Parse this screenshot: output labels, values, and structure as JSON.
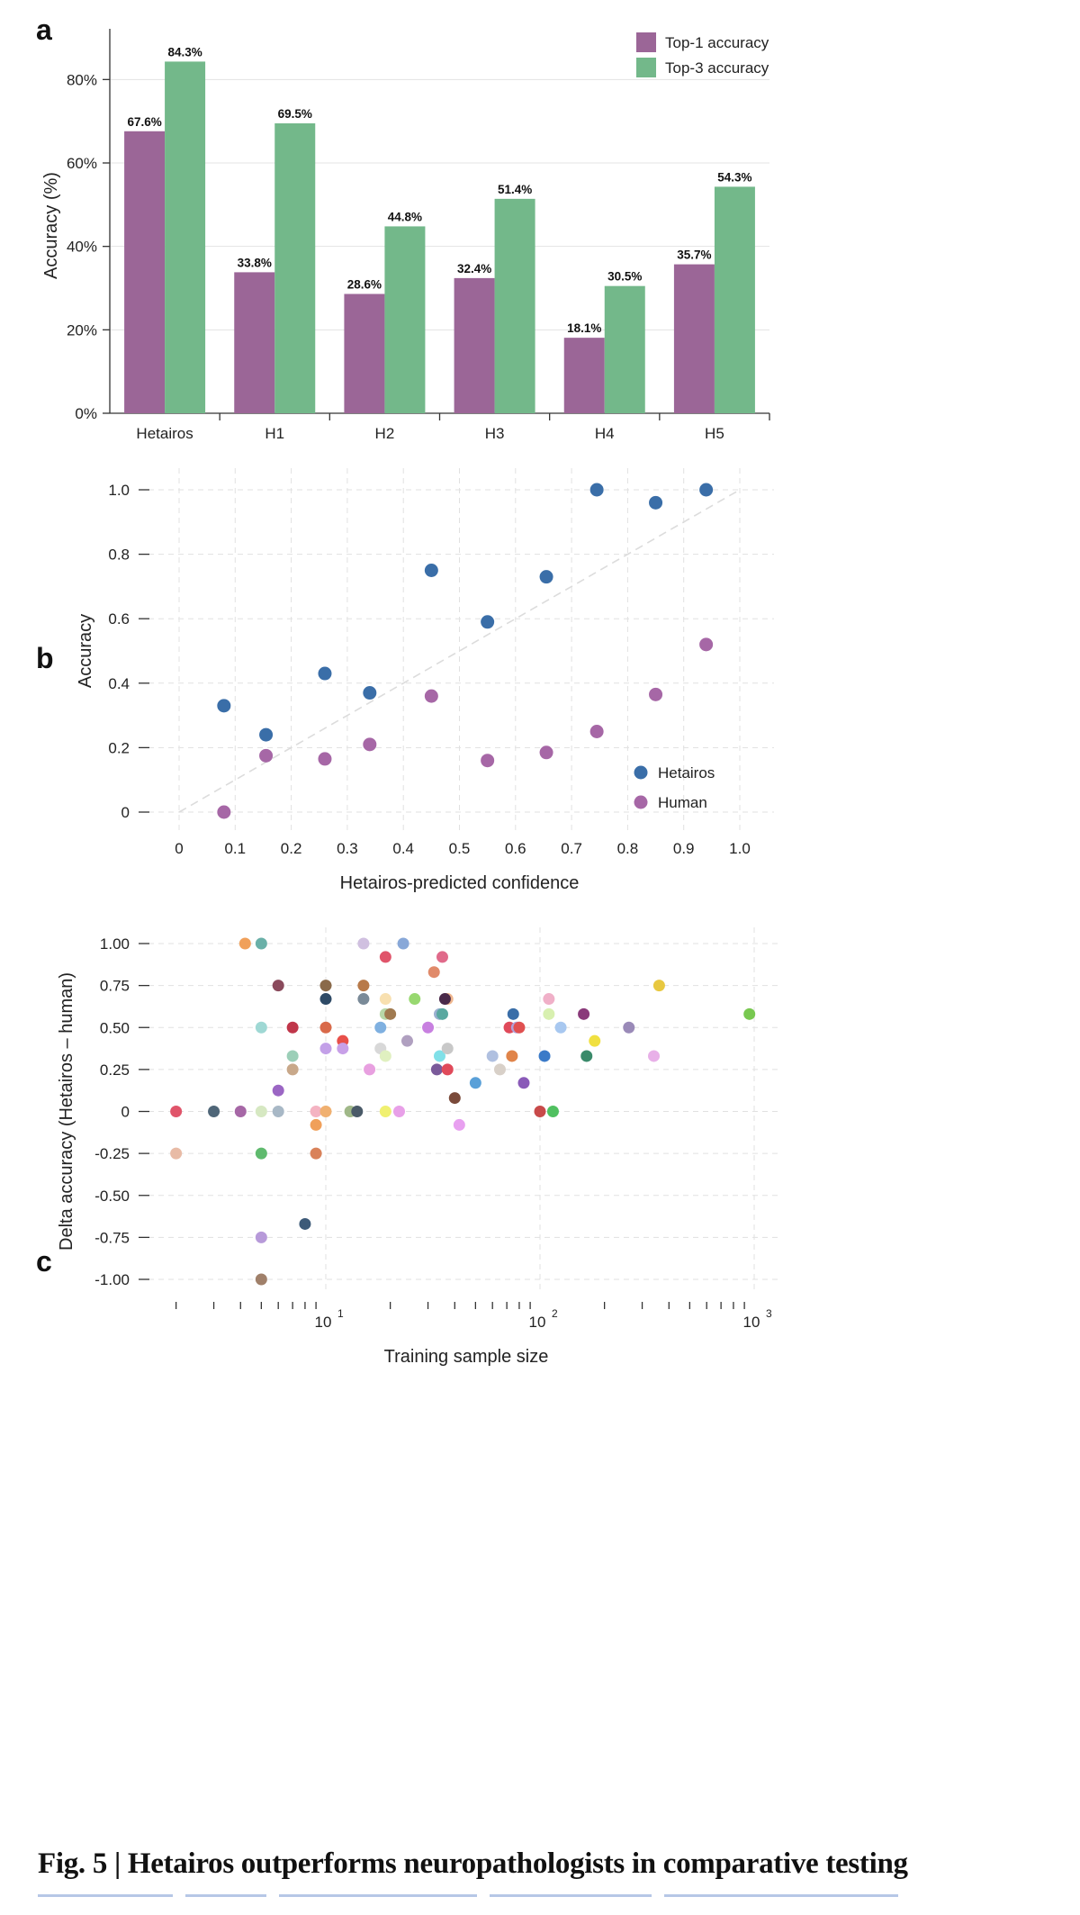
{
  "chart_data": [
    {
      "panel": "a",
      "type": "bar",
      "categories": [
        "Hetairos",
        "H1",
        "H2",
        "H3",
        "H4",
        "H5"
      ],
      "series": [
        {
          "name": "Top-1 accuracy",
          "values": [
            67.6,
            33.8,
            28.6,
            32.4,
            18.1,
            35.7
          ],
          "labels": [
            "67.6%",
            "33.8%",
            "28.6%",
            "32.4%",
            "18.1%",
            "35.7%"
          ],
          "color": "#9b6697"
        },
        {
          "name": "Top-3 accuracy",
          "values": [
            84.3,
            69.5,
            44.8,
            51.4,
            30.5,
            54.3
          ],
          "labels": [
            "84.3%",
            "69.5%",
            "44.8%",
            "51.4%",
            "30.5%",
            "54.3%"
          ],
          "color": "#73b88a"
        }
      ],
      "ylabel": "Accuracy (%)",
      "ylim": [
        0,
        90
      ],
      "yticks": [
        0,
        20,
        40,
        60,
        80
      ],
      "ytick_labels": [
        "0%",
        "20%",
        "40%",
        "60%",
        "80%"
      ],
      "grid": "horizontal",
      "legend": "top-right"
    },
    {
      "panel": "b",
      "type": "scatter",
      "xlabel": "Hetairos-predicted confidence",
      "ylabel": "Accuracy",
      "xlim": [
        0,
        1.0
      ],
      "ylim": [
        0,
        1.0
      ],
      "xticks": [
        0,
        0.1,
        0.2,
        0.3,
        0.4,
        0.5,
        0.6,
        0.7,
        0.8,
        0.9,
        1.0
      ],
      "xtick_labels": [
        "0",
        "0.1",
        "0.2",
        "0.3",
        "0.4",
        "0.5",
        "0.6",
        "0.7",
        "0.8",
        "0.9",
        "1.0"
      ],
      "yticks": [
        0,
        0.2,
        0.4,
        0.6,
        0.8,
        1.0
      ],
      "ytick_labels": [
        "0",
        "0.2",
        "0.4",
        "0.6",
        "0.8",
        "1.0"
      ],
      "grid": "both-dashed",
      "diagonal": "dashed",
      "legend": "bottom-right",
      "series": [
        {
          "name": "Hetairos",
          "color": "#3a6ea8",
          "points": [
            [
              0.08,
              0.33
            ],
            [
              0.155,
              0.24
            ],
            [
              0.26,
              0.43
            ],
            [
              0.34,
              0.37
            ],
            [
              0.45,
              0.75
            ],
            [
              0.55,
              0.59
            ],
            [
              0.655,
              0.73
            ],
            [
              0.745,
              1.0
            ],
            [
              0.85,
              0.96
            ],
            [
              0.94,
              1.0
            ]
          ]
        },
        {
          "name": "Human",
          "color": "#a667a6",
          "points": [
            [
              0.08,
              0.0
            ],
            [
              0.155,
              0.175
            ],
            [
              0.26,
              0.165
            ],
            [
              0.34,
              0.21
            ],
            [
              0.45,
              0.36
            ],
            [
              0.55,
              0.16
            ],
            [
              0.655,
              0.185
            ],
            [
              0.745,
              0.25
            ],
            [
              0.85,
              0.365
            ],
            [
              0.94,
              0.52
            ]
          ]
        }
      ]
    },
    {
      "panel": "c",
      "type": "scatter",
      "xscale": "log",
      "xlabel": "Training sample size",
      "ylabel": "Delta accuracy (Hetairos – human)",
      "xlim": [
        1.6,
        1100
      ],
      "ylim": [
        -1.05,
        1.05
      ],
      "xticks": [
        10,
        100,
        1000
      ],
      "xtick_labels": [
        "10",
        "10",
        "10"
      ],
      "xtick_exponents": [
        "1",
        "2",
        "3"
      ],
      "yticks": [
        -1.0,
        -0.75,
        -0.5,
        -0.25,
        0,
        0.25,
        0.5,
        0.75,
        1.0
      ],
      "ytick_labels": [
        "-1.00",
        "-0.75",
        "-0.50",
        "-0.25",
        "0",
        "0.25",
        "0.50",
        "0.75",
        "1.00"
      ],
      "grid": "both-dashed",
      "points": [
        [
          2,
          0,
          "#e0546a"
        ],
        [
          2,
          -0.25,
          "#e8bba6"
        ],
        [
          3,
          0,
          "#4f6678"
        ],
        [
          4,
          0,
          "#a667a6"
        ],
        [
          4.2,
          1.0,
          "#f0a05a"
        ],
        [
          5,
          1.0,
          "#6ab0a8"
        ],
        [
          5,
          0.5,
          "#9fd8d4"
        ],
        [
          5,
          0,
          "#d6e8c2"
        ],
        [
          5,
          -0.25,
          "#5fba6e"
        ],
        [
          5,
          -0.75,
          "#b79ad9"
        ],
        [
          5,
          -1.0,
          "#a0806a"
        ],
        [
          6,
          0.75,
          "#8a4a5c"
        ],
        [
          6,
          0.125,
          "#9b66c4"
        ],
        [
          6,
          0,
          "#a8b8c6"
        ],
        [
          7,
          0.5,
          "#c0364a"
        ],
        [
          7,
          0.33,
          "#9ccfb8"
        ],
        [
          7,
          0.25,
          "#c8a88a"
        ],
        [
          8,
          -0.67,
          "#3d5a78"
        ],
        [
          9,
          0,
          "#f4b3c2"
        ],
        [
          9,
          -0.08,
          "#f0a05a"
        ],
        [
          9,
          -0.25,
          "#d9825a"
        ],
        [
          10,
          0.75,
          "#8a6a4a"
        ],
        [
          10,
          0.67,
          "#2e4a66"
        ],
        [
          10,
          0.5,
          "#d96a4a"
        ],
        [
          10,
          0.375,
          "#c3a0e8"
        ],
        [
          10,
          0,
          "#f0b070"
        ],
        [
          12,
          0.42,
          "#e8504a"
        ],
        [
          12,
          0.375,
          "#c8a0e8"
        ],
        [
          13,
          0,
          "#a0b888"
        ],
        [
          14,
          0,
          "#4a5a68"
        ],
        [
          15,
          1.0,
          "#d0c0e0"
        ],
        [
          15,
          0.75,
          "#b87a4a"
        ],
        [
          15,
          0.67,
          "#7a8a98"
        ],
        [
          16,
          0.25,
          "#e8a0e0"
        ],
        [
          18,
          0.5,
          "#7fb0e0"
        ],
        [
          18,
          0.375,
          "#d8d8d8"
        ],
        [
          19,
          0.92,
          "#e0546a"
        ],
        [
          19,
          0.67,
          "#f8e0b0"
        ],
        [
          19,
          0.58,
          "#b8d8a8"
        ],
        [
          19,
          0.33,
          "#e0f0c0"
        ],
        [
          19,
          0,
          "#f0f070"
        ],
        [
          20,
          0.58,
          "#a07a50"
        ],
        [
          22,
          0,
          "#e8a0e8"
        ],
        [
          23,
          1.0,
          "#88a8d8"
        ],
        [
          24,
          0.42,
          "#b0a0c0"
        ],
        [
          26,
          0.67,
          "#98d870"
        ],
        [
          30,
          0.5,
          "#c880e0"
        ],
        [
          32,
          0.83,
          "#e08a6a"
        ],
        [
          33,
          0.25,
          "#7a5a9a"
        ],
        [
          34,
          0.58,
          "#9ab0d0"
        ],
        [
          34,
          0.33,
          "#80e0e8"
        ],
        [
          35,
          0.92,
          "#e06a8a"
        ],
        [
          35,
          0.58,
          "#5aa8a0"
        ],
        [
          37,
          0.67,
          "#f0b890"
        ],
        [
          37,
          0.375,
          "#c8c8c8"
        ],
        [
          37,
          0.25,
          "#e04a5a"
        ],
        [
          36,
          0.67,
          "#4a2a4a"
        ],
        [
          40,
          0.08,
          "#7a4a3a"
        ],
        [
          42,
          -0.08,
          "#e8a0f0"
        ],
        [
          50,
          0.17,
          "#5aa0d8"
        ],
        [
          60,
          0.33,
          "#b0c0e0"
        ],
        [
          65,
          0.25,
          "#d8d0c8"
        ],
        [
          72,
          0.5,
          "#e04a5a"
        ],
        [
          75,
          0.58,
          "#3a6ea8"
        ],
        [
          74,
          0.33,
          "#e0844a"
        ],
        [
          78,
          0.5,
          "#b0a0d8"
        ],
        [
          80,
          0.5,
          "#e05050"
        ],
        [
          84,
          0.17,
          "#8a5ab8"
        ],
        [
          100,
          0,
          "#c84a4a"
        ],
        [
          105,
          0.33,
          "#3a7ac8"
        ],
        [
          110,
          0.67,
          "#f0b0c8"
        ],
        [
          110,
          0.58,
          "#d8f0b0"
        ],
        [
          115,
          0,
          "#50c060"
        ],
        [
          125,
          0.5,
          "#a8c8f0"
        ],
        [
          160,
          0.58,
          "#8a3a7a"
        ],
        [
          165,
          0.33,
          "#3a8a6a"
        ],
        [
          180,
          0.42,
          "#f0e040"
        ],
        [
          260,
          0.5,
          "#9a8ab8"
        ],
        [
          340,
          0.33,
          "#e8b0e8"
        ],
        [
          360,
          0.75,
          "#e8c840"
        ],
        [
          950,
          0.58,
          "#78c850"
        ]
      ]
    }
  ],
  "panels": {
    "a": "a",
    "b": "b",
    "c": "c"
  },
  "caption": "Fig. 5 | Hetairos outperforms neuropathologists in comparative testing"
}
